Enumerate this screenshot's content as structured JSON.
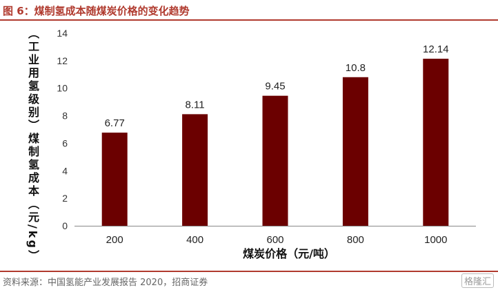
{
  "header": {
    "title": "图 6：煤制氢成本随煤炭价格的变化趋势"
  },
  "footer": {
    "source": "资料来源：中国氢能产业发展报告 2020，招商证券",
    "watermark": "格隆汇"
  },
  "colors": {
    "bar": "#6b0000",
    "accent": "#b03a2e",
    "axis": "#888888"
  },
  "chart_data": {
    "type": "bar",
    "categories": [
      "200",
      "400",
      "600",
      "800",
      "1000"
    ],
    "values": [
      6.77,
      8.11,
      9.45,
      10.8,
      12.14
    ],
    "value_labels": [
      "6.77",
      "8.11",
      "9.45",
      "10.8",
      "12.14"
    ],
    "yticks": [
      "0",
      "2",
      "4",
      "6",
      "8",
      "10",
      "12",
      "14"
    ],
    "ylim": [
      0,
      14
    ],
    "xlabel": "煤炭价格（元/吨）",
    "ylabel": "（工业用氢级别）煤制氢成本（元/kg）",
    "grid": false,
    "legend": "none"
  }
}
